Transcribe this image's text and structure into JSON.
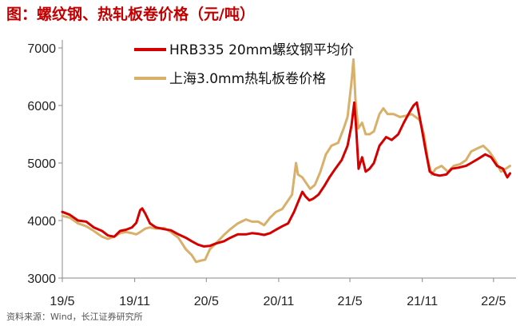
{
  "header": {
    "title": "图：螺纹钢、热轧板卷价格（元/吨）"
  },
  "footer": {
    "source": "资料来源：Wind，长江证券研究所"
  },
  "colors": {
    "series1": "#d40000",
    "series2": "#d8b06a",
    "title": "#c00000"
  },
  "chart_data": {
    "type": "line",
    "title": "图：螺纹钢、热轧板卷价格（元/吨）",
    "xlabel": "",
    "ylabel": "",
    "ylim": [
      3000,
      7000
    ],
    "yticks": [
      3000,
      4000,
      5000,
      6000,
      7000
    ],
    "xlim": [
      "2019-05-01",
      "2022-06-15"
    ],
    "xticks": [
      {
        "date": "2019-05-01",
        "label": "19/5"
      },
      {
        "date": "2019-11-01",
        "label": "19/11"
      },
      {
        "date": "2020-05-01",
        "label": "20/5"
      },
      {
        "date": "2020-11-01",
        "label": "20/11"
      },
      {
        "date": "2021-05-01",
        "label": "21/5"
      },
      {
        "date": "2021-11-01",
        "label": "21/11"
      },
      {
        "date": "2022-05-01",
        "label": "22/5"
      }
    ],
    "grid": false,
    "legend_position": "top-center",
    "series": [
      {
        "name": "HRB335 20mm螺纹钢平均价",
        "color": "#d40000",
        "points": [
          [
            "2019-05-01",
            4150
          ],
          [
            "2019-05-20",
            4100
          ],
          [
            "2019-06-10",
            4000
          ],
          [
            "2019-07-01",
            3980
          ],
          [
            "2019-07-20",
            3880
          ],
          [
            "2019-08-10",
            3820
          ],
          [
            "2019-08-25",
            3740
          ],
          [
            "2019-09-10",
            3720
          ],
          [
            "2019-09-25",
            3820
          ],
          [
            "2019-10-10",
            3840
          ],
          [
            "2019-10-25",
            3880
          ],
          [
            "2019-11-05",
            3960
          ],
          [
            "2019-11-15",
            4180
          ],
          [
            "2019-11-20",
            4210
          ],
          [
            "2019-11-28",
            4120
          ],
          [
            "2019-12-10",
            3950
          ],
          [
            "2019-12-25",
            3880
          ],
          [
            "2020-01-15",
            3850
          ],
          [
            "2020-02-01",
            3830
          ],
          [
            "2020-02-20",
            3760
          ],
          [
            "2020-03-10",
            3700
          ],
          [
            "2020-03-25",
            3640
          ],
          [
            "2020-04-10",
            3580
          ],
          [
            "2020-04-25",
            3550
          ],
          [
            "2020-05-10",
            3560
          ],
          [
            "2020-05-25",
            3600
          ],
          [
            "2020-06-15",
            3640
          ],
          [
            "2020-07-01",
            3700
          ],
          [
            "2020-07-20",
            3760
          ],
          [
            "2020-08-10",
            3760
          ],
          [
            "2020-08-25",
            3780
          ],
          [
            "2020-09-10",
            3770
          ],
          [
            "2020-09-25",
            3750
          ],
          [
            "2020-10-10",
            3780
          ],
          [
            "2020-10-25",
            3840
          ],
          [
            "2020-11-10",
            3900
          ],
          [
            "2020-11-25",
            3950
          ],
          [
            "2020-12-10",
            4150
          ],
          [
            "2020-12-25",
            4400
          ],
          [
            "2020-12-31",
            4500
          ],
          [
            "2021-01-08",
            4420
          ],
          [
            "2021-01-18",
            4350
          ],
          [
            "2021-01-28",
            4380
          ],
          [
            "2021-02-10",
            4450
          ],
          [
            "2021-02-25",
            4600
          ],
          [
            "2021-03-10",
            4750
          ],
          [
            "2021-03-25",
            4900
          ],
          [
            "2021-04-10",
            5050
          ],
          [
            "2021-04-25",
            5300
          ],
          [
            "2021-05-05",
            5650
          ],
          [
            "2021-05-12",
            6050
          ],
          [
            "2021-05-17",
            5600
          ],
          [
            "2021-05-23",
            4900
          ],
          [
            "2021-06-01",
            5100
          ],
          [
            "2021-06-10",
            4850
          ],
          [
            "2021-06-20",
            4900
          ],
          [
            "2021-07-01",
            5000
          ],
          [
            "2021-07-15",
            5300
          ],
          [
            "2021-08-01",
            5450
          ],
          [
            "2021-08-15",
            5400
          ],
          [
            "2021-09-01",
            5500
          ],
          [
            "2021-09-15",
            5700
          ],
          [
            "2021-10-01",
            5900
          ],
          [
            "2021-10-10",
            6000
          ],
          [
            "2021-10-18",
            6050
          ],
          [
            "2021-10-28",
            5700
          ],
          [
            "2021-11-10",
            5200
          ],
          [
            "2021-11-20",
            4850
          ],
          [
            "2021-12-01",
            4800
          ],
          [
            "2021-12-15",
            4780
          ],
          [
            "2022-01-01",
            4800
          ],
          [
            "2022-01-15",
            4900
          ],
          [
            "2022-02-01",
            4920
          ],
          [
            "2022-02-20",
            4950
          ],
          [
            "2022-03-05",
            5000
          ],
          [
            "2022-03-25",
            5080
          ],
          [
            "2022-04-10",
            5150
          ],
          [
            "2022-04-25",
            5100
          ],
          [
            "2022-05-10",
            4950
          ],
          [
            "2022-05-25",
            4900
          ],
          [
            "2022-06-05",
            4750
          ],
          [
            "2022-06-12",
            4820
          ]
        ]
      },
      {
        "name": "上海3.0mm热轧板卷价格",
        "color": "#d8b06a",
        "points": [
          [
            "2019-05-01",
            4080
          ],
          [
            "2019-05-20",
            4050
          ],
          [
            "2019-06-10",
            3950
          ],
          [
            "2019-07-01",
            3900
          ],
          [
            "2019-07-20",
            3820
          ],
          [
            "2019-08-10",
            3720
          ],
          [
            "2019-08-25",
            3680
          ],
          [
            "2019-09-10",
            3720
          ],
          [
            "2019-09-25",
            3780
          ],
          [
            "2019-10-10",
            3800
          ],
          [
            "2019-10-25",
            3780
          ],
          [
            "2019-11-05",
            3760
          ],
          [
            "2019-11-15",
            3800
          ],
          [
            "2019-11-28",
            3860
          ],
          [
            "2019-12-10",
            3880
          ],
          [
            "2019-12-25",
            3860
          ],
          [
            "2020-01-15",
            3870
          ],
          [
            "2020-02-01",
            3800
          ],
          [
            "2020-02-20",
            3700
          ],
          [
            "2020-03-10",
            3500
          ],
          [
            "2020-03-25",
            3400
          ],
          [
            "2020-04-05",
            3280
          ],
          [
            "2020-04-15",
            3300
          ],
          [
            "2020-04-28",
            3320
          ],
          [
            "2020-05-10",
            3500
          ],
          [
            "2020-05-25",
            3600
          ],
          [
            "2020-06-15",
            3750
          ],
          [
            "2020-07-01",
            3850
          ],
          [
            "2020-07-20",
            3950
          ],
          [
            "2020-08-10",
            4020
          ],
          [
            "2020-08-25",
            3980
          ],
          [
            "2020-09-10",
            3980
          ],
          [
            "2020-09-25",
            3920
          ],
          [
            "2020-10-10",
            4050
          ],
          [
            "2020-10-25",
            4150
          ],
          [
            "2020-11-10",
            4200
          ],
          [
            "2020-11-25",
            4350
          ],
          [
            "2020-12-05",
            4450
          ],
          [
            "2020-12-15",
            5000
          ],
          [
            "2020-12-20",
            4800
          ],
          [
            "2020-12-31",
            4750
          ],
          [
            "2021-01-10",
            4650
          ],
          [
            "2021-01-20",
            4550
          ],
          [
            "2021-02-01",
            4620
          ],
          [
            "2021-02-15",
            4850
          ],
          [
            "2021-03-01",
            5150
          ],
          [
            "2021-03-15",
            5300
          ],
          [
            "2021-04-01",
            5350
          ],
          [
            "2021-04-15",
            5600
          ],
          [
            "2021-04-25",
            5800
          ],
          [
            "2021-05-05",
            6400
          ],
          [
            "2021-05-10",
            6800
          ],
          [
            "2021-05-15",
            6100
          ],
          [
            "2021-05-22",
            5600
          ],
          [
            "2021-06-01",
            5700
          ],
          [
            "2021-06-10",
            5500
          ],
          [
            "2021-06-20",
            5500
          ],
          [
            "2021-07-01",
            5550
          ],
          [
            "2021-07-15",
            5850
          ],
          [
            "2021-07-25",
            5950
          ],
          [
            "2021-08-05",
            5850
          ],
          [
            "2021-08-20",
            5850
          ],
          [
            "2021-09-05",
            5800
          ],
          [
            "2021-09-20",
            5820
          ],
          [
            "2021-10-05",
            5850
          ],
          [
            "2021-10-15",
            5800
          ],
          [
            "2021-10-25",
            5750
          ],
          [
            "2021-11-05",
            5500
          ],
          [
            "2021-11-15",
            5050
          ],
          [
            "2021-11-25",
            4800
          ],
          [
            "2021-12-05",
            4900
          ],
          [
            "2021-12-20",
            4950
          ],
          [
            "2022-01-05",
            4850
          ],
          [
            "2022-01-20",
            4950
          ],
          [
            "2022-02-05",
            4980
          ],
          [
            "2022-02-20",
            5050
          ],
          [
            "2022-03-05",
            5200
          ],
          [
            "2022-03-20",
            5250
          ],
          [
            "2022-04-05",
            5300
          ],
          [
            "2022-04-20",
            5200
          ],
          [
            "2022-05-05",
            5050
          ],
          [
            "2022-05-20",
            4850
          ],
          [
            "2022-06-01",
            4900
          ],
          [
            "2022-06-12",
            4950
          ]
        ]
      }
    ]
  }
}
